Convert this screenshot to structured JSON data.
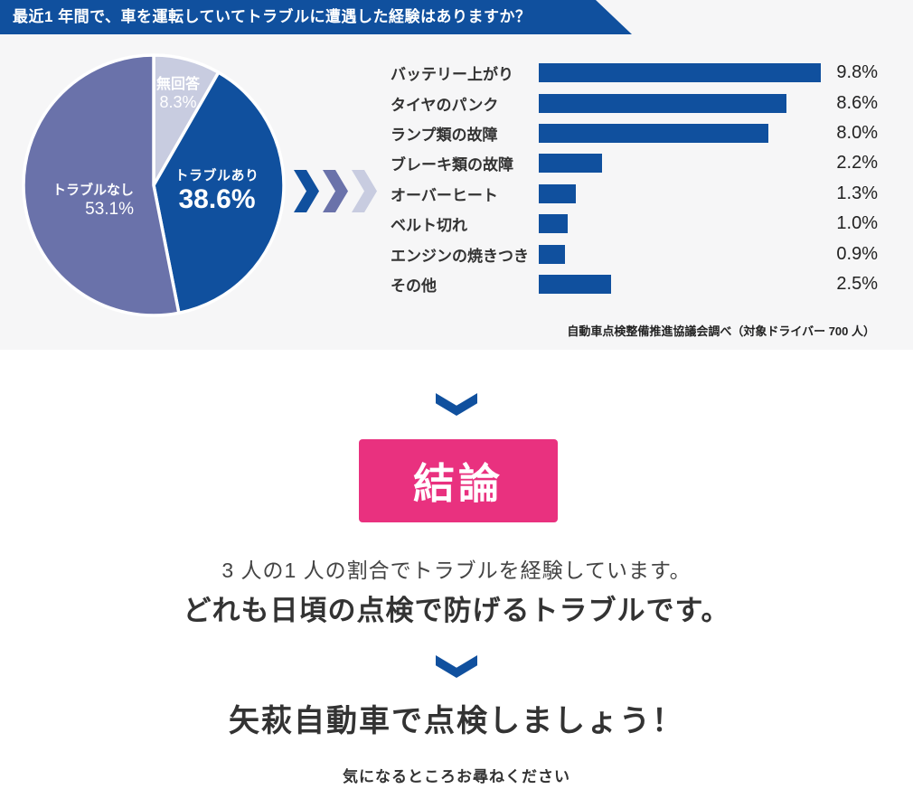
{
  "colors": {
    "primary_blue": "#10509e",
    "purple": "#6a72aa",
    "lavender": "#c8cce0",
    "pink": "#e9317f",
    "section_bg": "#f6f6f7",
    "text_dark": "#333333"
  },
  "header": {
    "title": "最近1 年間で、車を運転していてトラブルに遭遇した経験はありますか？"
  },
  "chart_data": [
    {
      "type": "pie",
      "title": "トラブル遭遇経験の割合",
      "unit": "%",
      "start_angle": "top",
      "direction": "clockwise",
      "slices": [
        {
          "id": "no-answer",
          "label": "無回答",
          "value": 8.3,
          "pct": "8.3%",
          "color": "#c8cce0"
        },
        {
          "id": "trouble-yes",
          "label": "トラブルあり",
          "value": 38.6,
          "pct": "38.6%",
          "color": "#10509e"
        },
        {
          "id": "trouble-no",
          "label": "トラブルなし",
          "value": 53.1,
          "pct": "53.1%",
          "color": "#6a72aa"
        }
      ]
    },
    {
      "type": "bar",
      "orientation": "horizontal",
      "unit": "%",
      "bar_color": "#10509e",
      "xlim": [
        0,
        10
      ],
      "categories": [
        "バッテリー上がり",
        "タイヤのパンク",
        "ランプ類の故障",
        "ブレーキ類の故障",
        "オーバーヒート",
        "ベルト切れ",
        "エンジンの焼きつき",
        "その他"
      ],
      "values": [
        9.8,
        8.6,
        8.0,
        2.2,
        1.3,
        1.0,
        0.9,
        2.5
      ],
      "value_labels": [
        "9.8%",
        "8.6%",
        "8.0%",
        "2.2%",
        "1.3%",
        "1.0%",
        "0.9%",
        "2.5%"
      ]
    }
  ],
  "survey": {
    "source_note": "自動車点検整備推進協議会調べ（対象ドライバー 700 人）"
  },
  "conclusion": {
    "badge_label": "結論",
    "badge_bg": "#e9317f",
    "line1": "3 人の1 人の割合でトラブルを経験しています。",
    "line2": "どれも日頃の点検で防げるトラブルです。"
  },
  "cta": {
    "heading": "矢萩自動車で点検しましょう！",
    "subtext": "気になるところお尋ねください"
  }
}
